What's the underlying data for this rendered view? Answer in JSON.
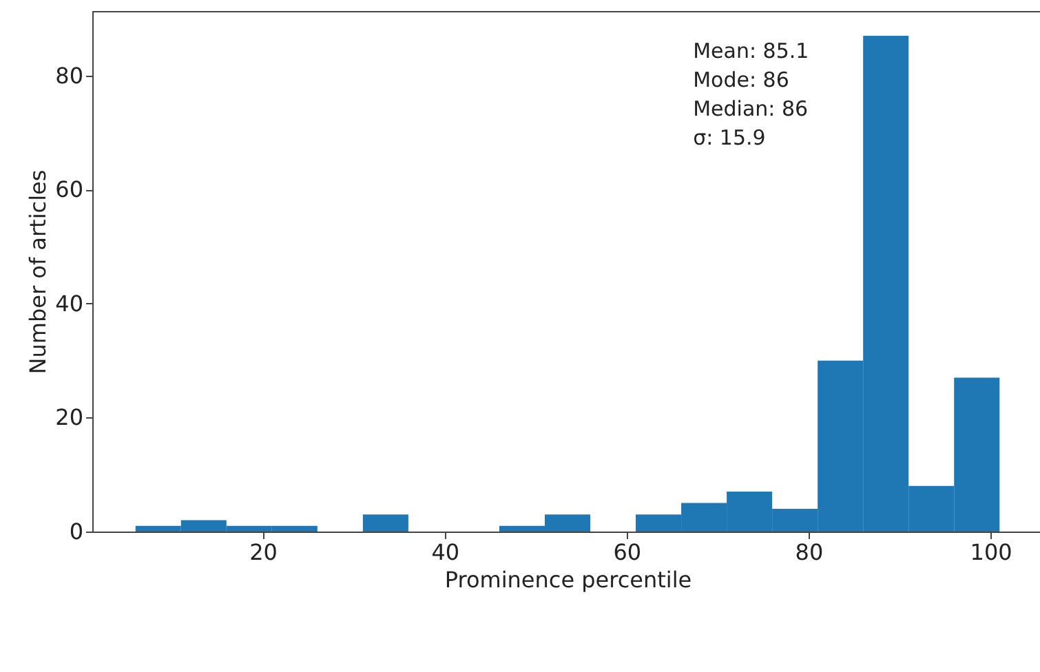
{
  "chart_data": {
    "type": "histogram",
    "xlabel": "Prominence percentile",
    "ylabel": "Number of articles",
    "bins": [
      6,
      11,
      16,
      21,
      26,
      31,
      36,
      41,
      46,
      51,
      56,
      61,
      66,
      71,
      76,
      81,
      86,
      91,
      96,
      101
    ],
    "values": [
      1,
      2,
      1,
      1,
      0,
      3,
      0,
      0,
      1,
      3,
      0,
      3,
      5,
      7,
      4,
      30,
      87,
      8,
      27
    ],
    "color": "#1f77b4",
    "xlim": [
      1.25,
      105.75
    ],
    "ylim": [
      0,
      91.35
    ],
    "xticks": [
      20,
      40,
      60,
      80,
      100
    ],
    "yticks": [
      0,
      20,
      40,
      60,
      80
    ],
    "annotations": [
      "Mean: 85.1",
      "Mode: 86",
      "Median: 86",
      "σ: 15.9"
    ],
    "grid": false
  }
}
